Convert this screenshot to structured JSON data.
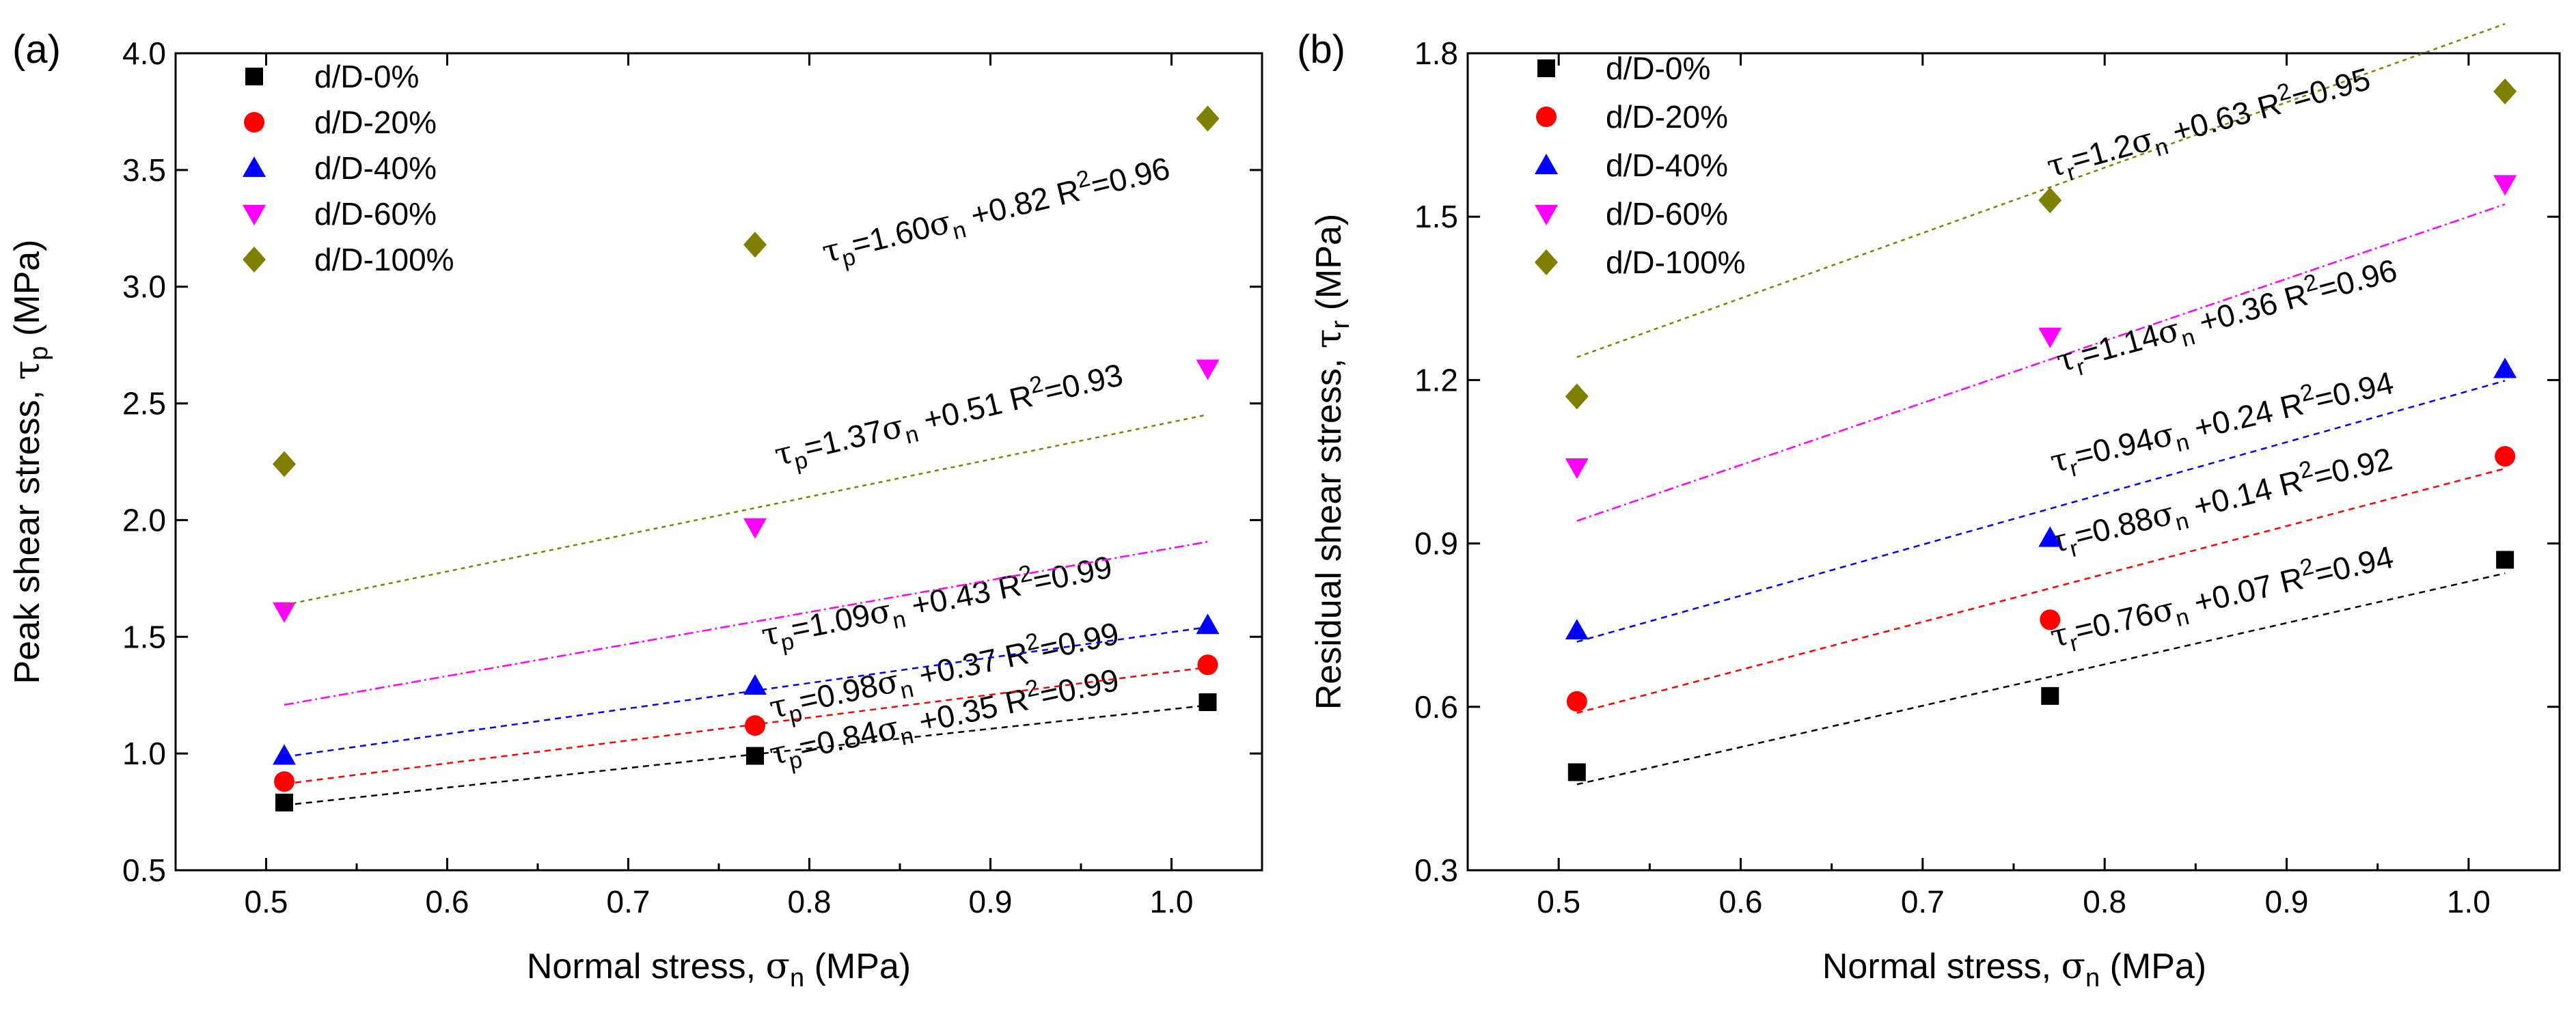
{
  "figure": {
    "panels": [
      {
        "id": "a",
        "label": "(a)"
      },
      {
        "id": "b",
        "label": "(b)"
      }
    ]
  },
  "chart_data": [
    {
      "type": "scatter",
      "panel_label": "(a)",
      "title": "",
      "xlabel": "Normal stress, σn (MPa)",
      "ylabel": "Peak shear stress, τp (MPa)",
      "xlim": [
        0.45,
        1.05
      ],
      "ylim": [
        0.5,
        4.0
      ],
      "xticks": [
        "0.5",
        "0.6",
        "0.7",
        "0.8",
        "0.9",
        "1.0"
      ],
      "yticks": [
        "0.5",
        "1.0",
        "1.5",
        "2.0",
        "2.5",
        "3.0",
        "3.5",
        "4.0"
      ],
      "legend_position": "top-left",
      "series": [
        {
          "name": "d/D-0%",
          "marker": "square",
          "color": "#000000",
          "x": [
            0.51,
            0.77,
            1.02
          ],
          "y": [
            0.79,
            0.99,
            1.22
          ],
          "fit": {
            "slope": 0.84,
            "intercept": 0.35,
            "r2": 0.99,
            "symbol": "τ",
            "subscript": "p",
            "eq_mid": "=0.84σ",
            "eq_sub": "n",
            "eq_tail": " +0.35  R",
            "eq_sup": "2",
            "eq_end": "=0.99"
          }
        },
        {
          "name": "d/D-20%",
          "marker": "circle",
          "color": "#ff0000",
          "x": [
            0.51,
            0.77,
            1.02
          ],
          "y": [
            0.88,
            1.12,
            1.38
          ],
          "fit": {
            "slope": 0.98,
            "intercept": 0.37,
            "r2": 0.99,
            "symbol": "τ",
            "subscript": "p",
            "eq_mid": "=0.98σ",
            "eq_sub": "n",
            "eq_tail": " +0.37  R",
            "eq_sup": "2",
            "eq_end": "=0.99"
          }
        },
        {
          "name": "d/D-40%",
          "marker": "triangle-up",
          "color": "#0000ff",
          "x": [
            0.51,
            0.77,
            1.02
          ],
          "y": [
            0.99,
            1.29,
            1.55
          ],
          "fit": {
            "slope": 1.09,
            "intercept": 0.43,
            "r2": 0.99,
            "symbol": "τ",
            "subscript": "p",
            "eq_mid": "=1.09σ",
            "eq_sub": "n",
            "eq_tail": " +0.43  R",
            "eq_sup": "2",
            "eq_end": "=0.99"
          }
        },
        {
          "name": "d/D-60%",
          "marker": "triangle-down",
          "color": "#ff00ff",
          "x": [
            0.51,
            0.77,
            1.02
          ],
          "y": [
            1.61,
            1.97,
            2.65
          ],
          "fit": {
            "slope": 1.37,
            "intercept": 0.51,
            "r2": 0.93,
            "symbol": "τ",
            "subscript": "p",
            "eq_mid": "=1.37σ",
            "eq_sub": "n",
            "eq_tail": " +0.51  R",
            "eq_sup": "2",
            "eq_end": "=0.93"
          }
        },
        {
          "name": "d/D-100%",
          "marker": "diamond",
          "color": "#808000",
          "x": [
            0.51,
            0.77,
            1.02
          ],
          "y": [
            2.24,
            3.18,
            3.72
          ],
          "fit": {
            "slope": 1.6,
            "intercept": 0.82,
            "r2": 0.96,
            "symbol": "τ",
            "subscript": "p",
            "eq_mid": "=1.60σ",
            "eq_sub": "n",
            "eq_tail": " +0.82  R",
            "eq_sup": "2",
            "eq_end": "=0.96"
          }
        }
      ]
    },
    {
      "type": "scatter",
      "panel_label": "(b)",
      "title": "",
      "xlabel": "Normal stress, σn (MPa)",
      "ylabel": "Residual shear stress, τr (MPa)",
      "xlim": [
        0.45,
        1.05
      ],
      "ylim": [
        0.3,
        1.8
      ],
      "xticks": [
        "0.5",
        "0.6",
        "0.7",
        "0.8",
        "0.9",
        "1.0"
      ],
      "yticks": [
        "0.3",
        "0.6",
        "0.9",
        "1.2",
        "1.5",
        "1.8"
      ],
      "legend_position": "top-left",
      "series": [
        {
          "name": "d/D-0%",
          "marker": "square",
          "color": "#000000",
          "x": [
            0.51,
            0.77,
            1.02
          ],
          "y": [
            0.48,
            0.62,
            0.87
          ],
          "fit": {
            "slope": 0.76,
            "intercept": 0.07,
            "r2": 0.94,
            "symbol": "τ",
            "subscript": "r",
            "eq_mid": "=0.76σ",
            "eq_sub": "n",
            "eq_tail": " +0.07  R",
            "eq_sup": "2",
            "eq_end": "=0.94"
          }
        },
        {
          "name": "d/D-20%",
          "marker": "circle",
          "color": "#ff0000",
          "x": [
            0.51,
            0.77,
            1.02
          ],
          "y": [
            0.61,
            0.76,
            1.06
          ],
          "fit": {
            "slope": 0.88,
            "intercept": 0.14,
            "r2": 0.92,
            "symbol": "τ",
            "subscript": "r",
            "eq_mid": "=0.88σ",
            "eq_sub": "n",
            "eq_tail": " +0.14  R",
            "eq_sup": "2",
            "eq_end": "=0.92"
          }
        },
        {
          "name": "d/D-40%",
          "marker": "triangle-up",
          "color": "#0000ff",
          "x": [
            0.51,
            0.77,
            1.02
          ],
          "y": [
            0.74,
            0.91,
            1.22
          ],
          "fit": {
            "slope": 0.94,
            "intercept": 0.24,
            "r2": 0.94,
            "symbol": "τ",
            "subscript": "r",
            "eq_mid": "=0.94σ",
            "eq_sub": "n",
            "eq_tail": " +0.24  R",
            "eq_sup": "2",
            "eq_end": "=0.94"
          }
        },
        {
          "name": "d/D-60%",
          "marker": "triangle-down",
          "color": "#ff00ff",
          "x": [
            0.51,
            0.77,
            1.02
          ],
          "y": [
            1.04,
            1.28,
            1.56
          ],
          "fit": {
            "slope": 1.14,
            "intercept": 0.36,
            "r2": 0.96,
            "symbol": "τ",
            "subscript": "r",
            "eq_mid": "=1.14σ",
            "eq_sub": "n",
            "eq_tail": " +0.36  R",
            "eq_sup": "2",
            "eq_end": "=0.96"
          }
        },
        {
          "name": "d/D-100%",
          "marker": "diamond",
          "color": "#808000",
          "x": [
            0.51,
            0.77,
            1.02
          ],
          "y": [
            1.17,
            1.53,
            1.73
          ],
          "fit": {
            "slope": 1.2,
            "intercept": 0.63,
            "r2": 0.95,
            "symbol": "τ",
            "subscript": "r",
            "eq_mid": "=1.2σ",
            "eq_sub": "n",
            "eq_tail": " +0.63  R",
            "eq_sup": "2",
            "eq_end": "=0.95"
          }
        }
      ]
    }
  ]
}
